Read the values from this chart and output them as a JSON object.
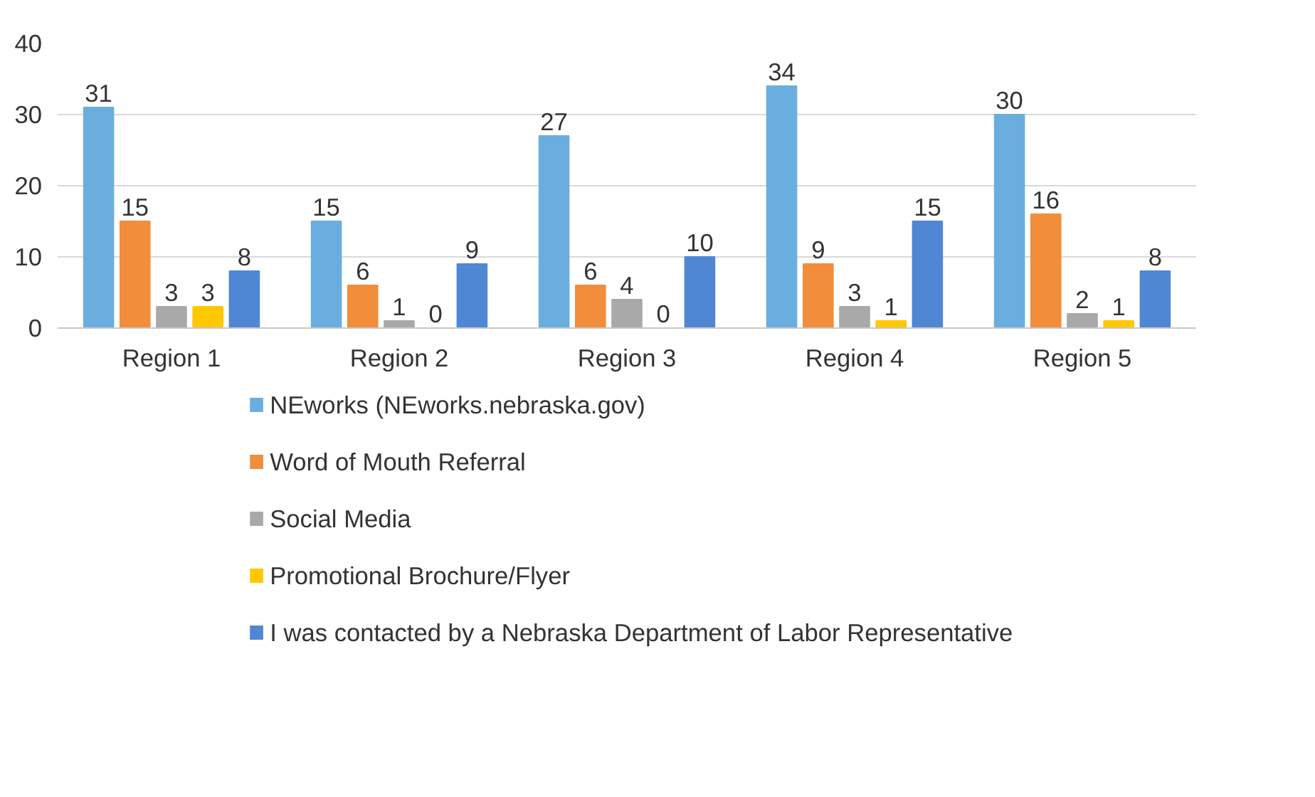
{
  "chart_data": {
    "type": "bar",
    "categories": [
      "Region 1",
      "Region 2",
      "Region 3",
      "Region 4",
      "Region 5"
    ],
    "series": [
      {
        "name": "NEworks (NEworks.nebraska.gov)",
        "color": "#6aaee0",
        "values": [
          31,
          15,
          27,
          34,
          30
        ]
      },
      {
        "name": "Word of Mouth Referral",
        "color": "#f18d3b",
        "values": [
          15,
          6,
          6,
          9,
          16
        ]
      },
      {
        "name": "Social Media",
        "color": "#a9a9a9",
        "values": [
          3,
          1,
          4,
          3,
          2
        ]
      },
      {
        "name": "Promotional Brochure/Flyer",
        "color": "#ffc800",
        "values": [
          3,
          0,
          0,
          1,
          1
        ]
      },
      {
        "name": "I was contacted by a Nebraska Department of Labor Representative",
        "color": "#5087d4",
        "values": [
          8,
          9,
          10,
          15,
          8
        ]
      }
    ],
    "ylim": [
      0,
      40
    ],
    "yticks": [
      0,
      10,
      20,
      30,
      40
    ],
    "grid": "y",
    "legend": "bottom",
    "data_labels": true
  }
}
